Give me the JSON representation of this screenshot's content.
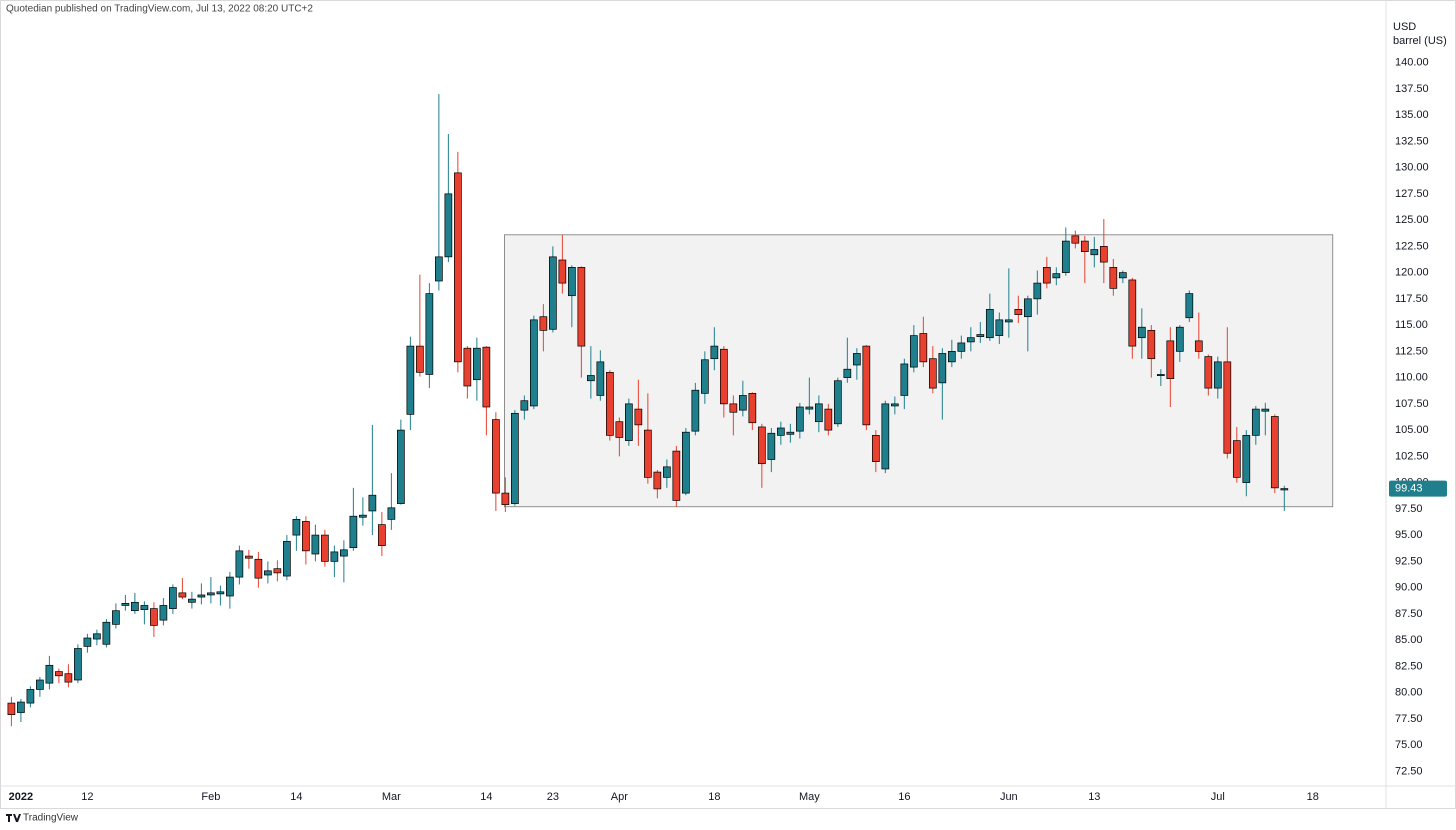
{
  "chart_data": {
    "type": "candlestick",
    "header": "Quotedian published on TradingView.com, Jul 13, 2022 08:20 UTC+2",
    "currency": "USD",
    "unit": "barrel (US)",
    "brand": "TradingView",
    "up_color": "#1f7f8c",
    "down_color": "#e8412f",
    "box_color": "#f2f2f2",
    "open": [
      79.0,
      78.1,
      79.0,
      80.3,
      80.9,
      82.0,
      81.8,
      81.2,
      84.4,
      85.1,
      84.6,
      86.5,
      88.3,
      87.8,
      87.9,
      88.0,
      86.9,
      88.0,
      89.5,
      88.6,
      89.1,
      89.3,
      89.4,
      89.2,
      91.0,
      93.0,
      92.7,
      91.2,
      91.8,
      91.1,
      95.0,
      96.3,
      93.2,
      95.0,
      92.5,
      93.0,
      93.8,
      96.7,
      97.3,
      96.0,
      96.5,
      98.0,
      106.5,
      113.0,
      110.3,
      119.2,
      121.5,
      129.5,
      112.8,
      109.8,
      112.9,
      106.0,
      99.0,
      98.0,
      106.9,
      107.3,
      115.8,
      114.6,
      121.2,
      117.8,
      120.5,
      109.7,
      108.3,
      110.5,
      105.8,
      104.0,
      107.0,
      105.0,
      101.0,
      100.5,
      103.0,
      99.0,
      104.9,
      108.5,
      111.8,
      112.7,
      107.5,
      106.9,
      108.5,
      105.3,
      102.2,
      104.5,
      104.6,
      104.9,
      107.0,
      105.8,
      107.0,
      105.6,
      110.0,
      111.2,
      113.0,
      104.5,
      101.3,
      107.3,
      108.3,
      111.0,
      114.2,
      111.8,
      109.5,
      111.5,
      112.5,
      113.4,
      113.9,
      113.8,
      114.0,
      115.3,
      116.5,
      115.8,
      117.5,
      120.5,
      119.5,
      120.0,
      123.5,
      123.0,
      121.7,
      122.5,
      120.5,
      119.5,
      119.3,
      113.8,
      114.5,
      110.2,
      113.5,
      112.5,
      115.7,
      113.5,
      112.0,
      109.0,
      111.5,
      104.0,
      100.0,
      104.5,
      106.8,
      106.3,
      99.3
    ],
    "high": [
      79.6,
      79.4,
      80.6,
      81.5,
      83.5,
      82.3,
      82.7,
      84.6,
      85.6,
      86.0,
      87.0,
      88.5,
      89.3,
      89.5,
      88.7,
      88.6,
      89.0,
      90.3,
      90.9,
      89.6,
      90.4,
      91.0,
      90.2,
      91.5,
      94.0,
      93.6,
      93.4,
      92.5,
      92.6,
      95.0,
      96.8,
      96.8,
      96.0,
      95.5,
      94.0,
      94.5,
      99.5,
      98.6,
      105.5,
      97.2,
      100.9,
      106.0,
      113.9,
      119.8,
      119.0,
      137.0,
      133.2,
      131.5,
      113.0,
      113.8,
      113.0,
      106.7,
      100.5,
      106.9,
      108.3,
      115.9,
      117.0,
      122.5,
      123.6,
      120.7,
      120.6,
      113.0,
      112.6,
      110.7,
      106.2,
      108.0,
      109.8,
      108.5,
      101.2,
      102.2,
      103.5,
      105.2,
      109.5,
      112.5,
      114.8,
      113.0,
      108.3,
      109.7,
      108.6,
      105.6,
      105.2,
      105.8,
      105.6,
      107.6,
      110.0,
      108.3,
      107.5,
      110.0,
      113.8,
      112.8,
      113.1,
      105.0,
      107.8,
      108.2,
      111.8,
      115.0,
      115.8,
      113.0,
      112.8,
      113.6,
      114.0,
      114.8,
      115.3,
      118.0,
      116.2,
      120.4,
      117.8,
      117.8,
      120.2,
      121.5,
      120.5,
      124.3,
      124.0,
      123.5,
      123.4,
      125.1,
      121.3,
      120.2,
      119.5,
      116.6,
      115.0,
      110.8,
      114.8,
      115.0,
      118.3,
      116.2,
      112.2,
      112.0,
      114.8,
      105.3,
      105.0,
      107.3,
      107.6,
      106.5,
      99.7
    ],
    "low": [
      76.8,
      77.2,
      78.6,
      79.6,
      80.3,
      80.9,
      80.5,
      80.9,
      83.8,
      84.5,
      84.3,
      86.1,
      87.8,
      87.5,
      86.5,
      85.3,
      86.4,
      87.5,
      88.9,
      88.0,
      88.4,
      88.5,
      88.3,
      88.0,
      90.3,
      91.8,
      90.0,
      90.4,
      90.6,
      90.7,
      93.5,
      92.2,
      92.5,
      92.0,
      91.0,
      90.5,
      93.5,
      95.9,
      95.0,
      93.0,
      95.5,
      97.9,
      105.0,
      110.1,
      109.0,
      118.3,
      121.0,
      110.5,
      108.0,
      107.8,
      104.5,
      97.3,
      97.2,
      97.8,
      106.0,
      107.0,
      112.5,
      114.3,
      118.0,
      114.8,
      110.0,
      108.0,
      107.8,
      104.0,
      102.5,
      103.5,
      103.5,
      99.9,
      98.5,
      99.5,
      97.7,
      98.8,
      104.5,
      107.5,
      110.7,
      106.2,
      104.5,
      106.3,
      105.0,
      99.5,
      101.0,
      103.6,
      103.8,
      104.2,
      106.5,
      104.8,
      104.5,
      105.3,
      109.5,
      109.8,
      105.0,
      101.0,
      100.9,
      106.5,
      107.0,
      110.5,
      111.0,
      108.5,
      106.0,
      111.0,
      111.8,
      112.5,
      113.3,
      113.5,
      113.2,
      113.8,
      115.2,
      112.5,
      116.0,
      118.5,
      118.8,
      119.7,
      122.3,
      119.0,
      120.5,
      119.0,
      117.8,
      119.0,
      111.8,
      111.8,
      110.0,
      109.2,
      107.2,
      111.5,
      115.3,
      111.8,
      108.3,
      108.0,
      102.3,
      100.0,
      98.7,
      103.6,
      104.5,
      99.0,
      97.3
    ],
    "close": [
      77.9,
      79.1,
      80.3,
      81.2,
      82.6,
      81.6,
      81.0,
      84.2,
      85.2,
      85.6,
      86.7,
      87.8,
      88.5,
      88.6,
      88.3,
      86.4,
      88.3,
      90.0,
      89.1,
      88.9,
      89.3,
      89.5,
      89.6,
      91.0,
      93.5,
      92.8,
      90.9,
      91.6,
      91.4,
      94.4,
      96.5,
      93.5,
      95.0,
      92.5,
      93.4,
      93.6,
      96.8,
      96.9,
      98.8,
      94.0,
      97.6,
      105.0,
      113.0,
      110.5,
      118.0,
      121.5,
      127.5,
      111.5,
      109.2,
      112.8,
      107.2,
      99.0,
      97.9,
      106.6,
      107.8,
      115.5,
      114.5,
      121.5,
      119.0,
      120.5,
      113.0,
      110.2,
      111.5,
      104.5,
      104.3,
      107.5,
      105.5,
      100.5,
      99.4,
      101.5,
      98.3,
      104.8,
      108.8,
      111.7,
      113.0,
      107.5,
      106.7,
      108.3,
      105.7,
      101.8,
      104.7,
      105.2,
      104.8,
      107.2,
      107.2,
      107.5,
      105.0,
      109.7,
      110.8,
      112.3,
      105.5,
      102.0,
      107.5,
      107.5,
      111.3,
      114.0,
      111.5,
      109.0,
      112.3,
      112.5,
      113.3,
      113.8,
      114.1,
      116.5,
      115.5,
      115.5,
      116.0,
      117.5,
      119.0,
      119.0,
      119.9,
      123.0,
      122.8,
      122.0,
      122.2,
      121.0,
      118.5,
      120.0,
      113.0,
      114.8,
      111.8,
      110.3,
      109.9,
      114.8,
      118.0,
      112.5,
      109.0,
      111.5,
      102.8,
      100.5,
      104.5,
      107.0,
      107.0,
      99.5,
      99.43
    ],
    "range_box": {
      "x": [
        51.9,
        139.1
      ],
      "y": [
        97.7,
        123.6
      ]
    },
    "xlim": [
      -1.2,
      144.6
    ],
    "xticks": [
      {
        "value": 1,
        "label": "2022"
      },
      {
        "value": 8,
        "label": "12"
      },
      {
        "value": 21,
        "label": "Feb"
      },
      {
        "value": 30,
        "label": "14"
      },
      {
        "value": 40,
        "label": "Mar"
      },
      {
        "value": 50,
        "label": "14"
      },
      {
        "value": 57,
        "label": "23"
      },
      {
        "value": 64,
        "label": "Apr"
      },
      {
        "value": 74,
        "label": "18"
      },
      {
        "value": 84,
        "label": "May"
      },
      {
        "value": 94,
        "label": "16"
      },
      {
        "value": 105,
        "label": "Jun"
      },
      {
        "value": 114,
        "label": "13"
      },
      {
        "value": 127,
        "label": "Jul"
      },
      {
        "value": 137,
        "label": "18"
      }
    ],
    "ylim": [
      71.2,
      145.2
    ],
    "yticks": [
      {
        "value": 72.5,
        "label": "72.50"
      },
      {
        "value": 75,
        "label": "75.00"
      },
      {
        "value": 77.5,
        "label": "77.50"
      },
      {
        "value": 80,
        "label": "80.00"
      },
      {
        "value": 82.5,
        "label": "82.50"
      },
      {
        "value": 85,
        "label": "85.00"
      },
      {
        "value": 87.5,
        "label": "87.50"
      },
      {
        "value": 90,
        "label": "90.00"
      },
      {
        "value": 92.5,
        "label": "92.50"
      },
      {
        "value": 95,
        "label": "95.00"
      },
      {
        "value": 97.5,
        "label": "97.50"
      },
      {
        "value": 100,
        "label": "100.00"
      },
      {
        "value": 102.5,
        "label": "102.50"
      },
      {
        "value": 105,
        "label": "105.00"
      },
      {
        "value": 107.5,
        "label": "107.50"
      },
      {
        "value": 110,
        "label": "110.00"
      },
      {
        "value": 112.5,
        "label": "112.50"
      },
      {
        "value": 115,
        "label": "115.00"
      },
      {
        "value": 117.5,
        "label": "117.50"
      },
      {
        "value": 120,
        "label": "120.00"
      },
      {
        "value": 122.5,
        "label": "122.50"
      },
      {
        "value": 125,
        "label": "125.00"
      },
      {
        "value": 127.5,
        "label": "127.50"
      },
      {
        "value": 130,
        "label": "130.00"
      },
      {
        "value": 132.5,
        "label": "132.50"
      },
      {
        "value": 135,
        "label": "135.00"
      },
      {
        "value": 137.5,
        "label": "137.50"
      },
      {
        "value": 140,
        "label": "140.00"
      }
    ]
  }
}
